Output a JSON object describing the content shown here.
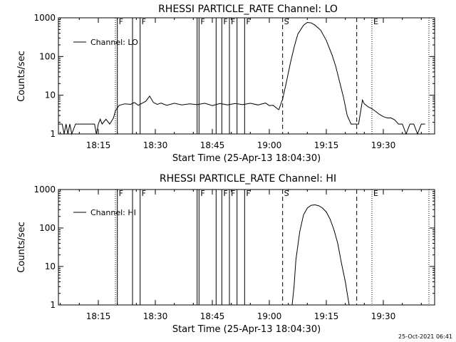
{
  "footer": {
    "timestamp": "25-Oct-2021 06:41"
  },
  "chart_data": [
    {
      "type": "line",
      "title": "RHESSI PARTICLE_RATE Channel: LO",
      "xlabel": "Start Time (25-Apr-13 18:04:30)",
      "ylabel": "Counts/sec",
      "yscale": "log",
      "ylim": [
        1,
        1000
      ],
      "xlim": [
        "18:04:30",
        "19:43:30"
      ],
      "x_ticks": [
        "18:15",
        "18:30",
        "18:45",
        "19:00",
        "19:15",
        "19:30"
      ],
      "y_ticks": [
        "1",
        "10",
        "100",
        "1000"
      ],
      "legend": {
        "entries": [
          "Channel: LO"
        ],
        "position": "top-left"
      },
      "markers": [
        {
          "label": "F",
          "time": "18:20:00",
          "style": "solid"
        },
        {
          "label": "F",
          "time": "18:26:00",
          "style": "solid"
        },
        {
          "label": "F",
          "time": "18:41:30",
          "style": "solid"
        },
        {
          "label": "F",
          "time": "18:47:30",
          "style": "solid"
        },
        {
          "label": "F",
          "time": "18:49:30",
          "style": "solid"
        },
        {
          "label": "F",
          "time": "18:53:30",
          "style": "solid"
        },
        {
          "label": "S",
          "time": "19:03:30",
          "style": "dashed"
        },
        {
          "label": "",
          "time": "19:23:00",
          "style": "dashed"
        },
        {
          "label": "E",
          "time": "19:27:00",
          "style": "dotted"
        }
      ],
      "vertical_lines": [
        {
          "time": "18:19:30",
          "style": "dotted"
        },
        {
          "time": "18:24:00",
          "style": "solid"
        },
        {
          "time": "18:41:00",
          "style": "solid"
        },
        {
          "time": "18:46:00",
          "style": "solid"
        },
        {
          "time": "18:51:30",
          "style": "solid"
        },
        {
          "time": "19:42:00",
          "style": "dotted"
        }
      ],
      "series": [
        {
          "name": "Channel: LO",
          "x": [
            "18:04:30",
            "18:05:30",
            "18:06:00",
            "18:06:30",
            "18:07:00",
            "18:07:30",
            "18:08:00",
            "18:09:00",
            "18:10:00",
            "18:11:00",
            "18:13:00",
            "18:14:00",
            "18:14:30",
            "18:15:00",
            "18:15:30",
            "18:16:00",
            "18:17:00",
            "18:18:00",
            "18:19:00",
            "18:19:30",
            "18:20:30",
            "18:22:00",
            "18:23:30",
            "18:24:30",
            "18:25:30",
            "18:26:30",
            "18:27:30",
            "18:28:30",
            "18:29:30",
            "18:30:30",
            "18:31:30",
            "18:33:00",
            "18:35:00",
            "18:37:00",
            "18:39:00",
            "18:41:00",
            "18:43:00",
            "18:45:00",
            "18:47:00",
            "18:49:00",
            "18:51:00",
            "18:53:00",
            "18:55:00",
            "18:57:00",
            "18:59:00",
            "19:00:00",
            "19:01:00",
            "19:02:30",
            "19:03:30",
            "19:04:30",
            "19:05:30",
            "19:06:30",
            "19:07:30",
            "19:09:00",
            "19:10:00",
            "19:11:00",
            "19:12:00",
            "19:13:30",
            "19:15:00",
            "19:16:30",
            "19:17:30",
            "19:18:30",
            "19:19:30",
            "19:20:30",
            "19:21:30",
            "19:22:30",
            "19:23:30",
            "19:24:30",
            "19:25:00",
            "19:26:00",
            "19:27:00",
            "19:28:00",
            "19:29:00",
            "19:30:00",
            "19:31:00",
            "19:32:00",
            "19:33:00",
            "19:34:00",
            "19:35:00",
            "19:36:00",
            "19:37:00",
            "19:38:00",
            "19:39:00",
            "19:40:00",
            "19:41:00"
          ],
          "values": [
            1.8,
            1.8,
            1,
            1.8,
            1,
            1.8,
            1,
            1.8,
            1.8,
            1.8,
            1.8,
            1.8,
            1,
            1.8,
            2.4,
            1.8,
            2.4,
            1.8,
            2.6,
            4,
            5.5,
            6,
            5.8,
            6.5,
            5.5,
            6.2,
            7,
            9.5,
            6.5,
            5.8,
            6.3,
            5.5,
            6.2,
            5.6,
            6,
            5.7,
            6.2,
            5.4,
            6.1,
            5.6,
            6.1,
            5.7,
            6.2,
            5.6,
            6.3,
            5.4,
            5.5,
            4.2,
            8,
            22,
            65,
            170,
            380,
            640,
            760,
            740,
            650,
            480,
            260,
            110,
            55,
            22,
            9,
            3,
            1.8,
            1.8,
            1.8,
            7.5,
            6,
            5,
            4.5,
            3.8,
            3.2,
            2.8,
            2.6,
            2.6,
            2.3,
            1.8,
            1.8,
            1,
            1.8,
            1.8,
            1,
            1.8,
            1.8
          ]
        }
      ]
    },
    {
      "type": "line",
      "title": "RHESSI PARTICLE_RATE Channel: HI",
      "xlabel": "Start Time (25-Apr-13 18:04:30)",
      "ylabel": "Counts/sec",
      "yscale": "log",
      "ylim": [
        1,
        1000
      ],
      "xlim": [
        "18:04:30",
        "19:43:30"
      ],
      "x_ticks": [
        "18:15",
        "18:30",
        "18:45",
        "19:00",
        "19:15",
        "19:30"
      ],
      "y_ticks": [
        "1",
        "10",
        "100",
        "1000"
      ],
      "legend": {
        "entries": [
          "Channel: HI"
        ],
        "position": "top-left"
      },
      "markers": [
        {
          "label": "F",
          "time": "18:20:00",
          "style": "solid"
        },
        {
          "label": "F",
          "time": "18:26:00",
          "style": "solid"
        },
        {
          "label": "F",
          "time": "18:41:30",
          "style": "solid"
        },
        {
          "label": "F",
          "time": "18:47:30",
          "style": "solid"
        },
        {
          "label": "F",
          "time": "18:49:30",
          "style": "solid"
        },
        {
          "label": "F",
          "time": "18:53:30",
          "style": "solid"
        },
        {
          "label": "S",
          "time": "19:03:30",
          "style": "dashed"
        },
        {
          "label": "",
          "time": "19:23:00",
          "style": "dashed"
        },
        {
          "label": "E",
          "time": "19:27:00",
          "style": "dotted"
        }
      ],
      "vertical_lines": [
        {
          "time": "18:19:30",
          "style": "dotted"
        },
        {
          "time": "18:24:00",
          "style": "solid"
        },
        {
          "time": "18:41:00",
          "style": "solid"
        },
        {
          "time": "18:46:00",
          "style": "solid"
        },
        {
          "time": "18:51:30",
          "style": "solid"
        },
        {
          "time": "19:42:00",
          "style": "dotted"
        }
      ],
      "series": [
        {
          "name": "Channel: HI",
          "x": [
            "19:06:00",
            "19:06:30",
            "19:07:00",
            "19:08:00",
            "19:09:00",
            "19:10:00",
            "19:11:00",
            "19:12:00",
            "19:13:00",
            "19:14:00",
            "19:15:00",
            "19:16:00",
            "19:17:00",
            "19:18:00",
            "19:19:00",
            "19:20:00",
            "19:20:30",
            "19:21:00"
          ],
          "values": [
            1,
            3,
            15,
            80,
            220,
            330,
            390,
            400,
            380,
            330,
            260,
            170,
            90,
            40,
            12,
            4,
            2,
            1
          ]
        }
      ]
    }
  ]
}
